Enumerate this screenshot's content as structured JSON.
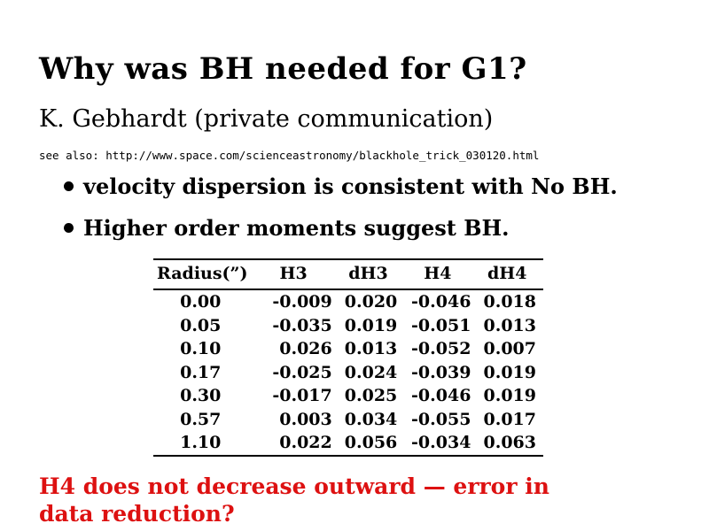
{
  "slide": {
    "title": "Why was BH needed for G1?",
    "subtitle": "K. Gebhardt (private communication)",
    "see_also": "see also: http://www.space.com/scienceastronomy/blackhole_trick_030120.html",
    "bullets": [
      "velocity dispersion is consistent with No BH.",
      "Higher order moments suggest BH."
    ],
    "note": "H4 does not decrease outward — error in data reduction?",
    "note_color": "#dd1111",
    "text_color": "#000000",
    "background_color": "#ffffff"
  },
  "chart_data": {
    "type": "table",
    "columns": [
      "Radius(”)",
      "H3",
      "dH3",
      "H4",
      "dH4"
    ],
    "rows": [
      [
        "0.00",
        "-0.009",
        "0.020",
        "-0.046",
        "0.018"
      ],
      [
        "0.05",
        "-0.035",
        "0.019",
        "-0.051",
        "0.013"
      ],
      [
        "0.10",
        "0.026",
        "0.013",
        "-0.052",
        "0.007"
      ],
      [
        "0.17",
        "-0.025",
        "0.024",
        "-0.039",
        "0.019"
      ],
      [
        "0.30",
        "-0.017",
        "0.025",
        "-0.046",
        "0.019"
      ],
      [
        "0.57",
        "0.003",
        "0.034",
        "-0.055",
        "0.017"
      ],
      [
        "1.10",
        "0.022",
        "0.056",
        "-0.034",
        "0.063"
      ]
    ]
  }
}
